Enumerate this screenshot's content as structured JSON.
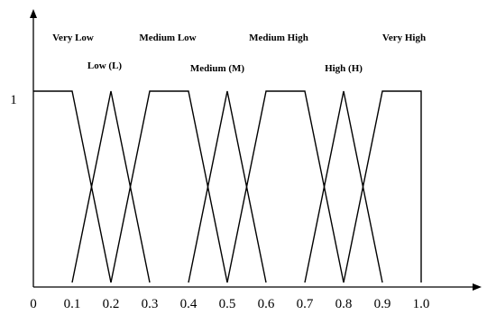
{
  "chart_data": {
    "type": "line",
    "title": "",
    "xlabel": "",
    "ylabel": "",
    "xlim": [
      0,
      1.0
    ],
    "ylim": [
      0,
      1
    ],
    "x_ticks": [
      "0",
      "0.1",
      "0.2",
      "0.3",
      "0.4",
      "0.5",
      "0.6",
      "0.7",
      "0.8",
      "0.9",
      "1.0"
    ],
    "y_ticks": [
      "1"
    ],
    "grid": false,
    "series": [
      {
        "name": "Very Low",
        "points": [
          [
            0,
            1
          ],
          [
            0.1,
            1
          ],
          [
            0.2,
            0
          ]
        ]
      },
      {
        "name": "Low (L)",
        "points": [
          [
            0.1,
            0
          ],
          [
            0.2,
            1
          ],
          [
            0.3,
            0
          ]
        ]
      },
      {
        "name": "Medium Low",
        "points": [
          [
            0.2,
            0
          ],
          [
            0.3,
            1
          ],
          [
            0.4,
            1
          ],
          [
            0.5,
            0
          ]
        ]
      },
      {
        "name": "Medium (M)",
        "points": [
          [
            0.4,
            0
          ],
          [
            0.5,
            1
          ],
          [
            0.6,
            0
          ]
        ]
      },
      {
        "name": "Medium High",
        "points": [
          [
            0.5,
            0
          ],
          [
            0.6,
            1
          ],
          [
            0.7,
            1
          ],
          [
            0.8,
            0
          ]
        ]
      },
      {
        "name": "High (H)",
        "points": [
          [
            0.7,
            0
          ],
          [
            0.8,
            1
          ],
          [
            0.9,
            0
          ]
        ]
      },
      {
        "name": "Very High",
        "points": [
          [
            0.8,
            0
          ],
          [
            0.9,
            1
          ],
          [
            1.0,
            1
          ],
          [
            1.0,
            0
          ]
        ]
      }
    ]
  }
}
